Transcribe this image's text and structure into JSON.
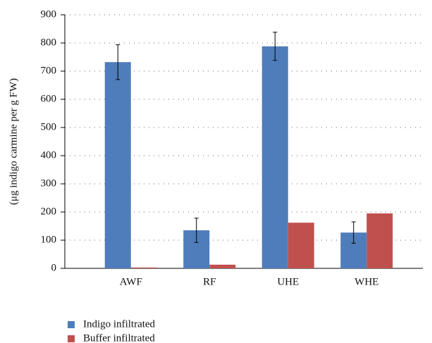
{
  "chart_data": {
    "type": "bar",
    "y_label": "(μg indigo carmine per g FW)",
    "categories": [
      "AWF",
      "RF",
      "UHE",
      "WHE"
    ],
    "series": [
      {
        "name": "Indigo infiltrated",
        "color": "#4f7dbb",
        "values": [
          732,
          135,
          788,
          127
        ],
        "errors": [
          62,
          43,
          50,
          38
        ]
      },
      {
        "name": "Buffer infiltrated",
        "color": "#c0504d",
        "values": [
          3,
          13,
          162,
          195
        ]
      }
    ],
    "ylim": [
      0,
      900
    ],
    "yticks": [
      0,
      100,
      200,
      300,
      400,
      500,
      600,
      700,
      800,
      900
    ],
    "grid": true,
    "legend": "bottom"
  }
}
